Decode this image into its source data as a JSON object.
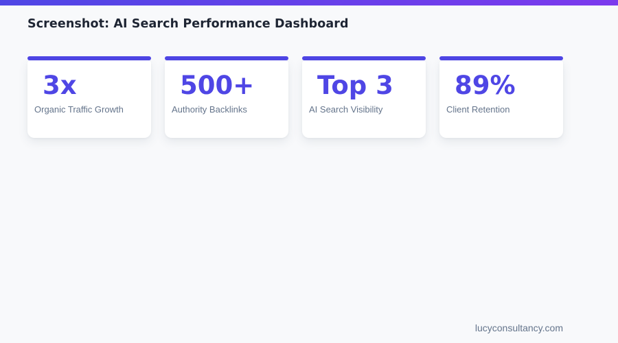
{
  "theme": {
    "accent_indigo": "#4f46e5",
    "accent_violet": "#7c3aed",
    "background": "#f8f9fb",
    "title_color": "#1e2533",
    "label_color": "#64748b",
    "card_background": "#ffffff"
  },
  "header": {
    "title": "Screenshot: AI Search Performance Dashboard"
  },
  "stats": {
    "cards": [
      {
        "value": "3x",
        "label": "Organic Traffic Growth"
      },
      {
        "value": "500+",
        "label": "Authority Backlinks"
      },
      {
        "value": "Top 3",
        "label": "AI Search Visibility"
      },
      {
        "value": "89%",
        "label": "Client Retention"
      }
    ]
  },
  "footer": {
    "domain": "lucyconsultancy.com"
  }
}
